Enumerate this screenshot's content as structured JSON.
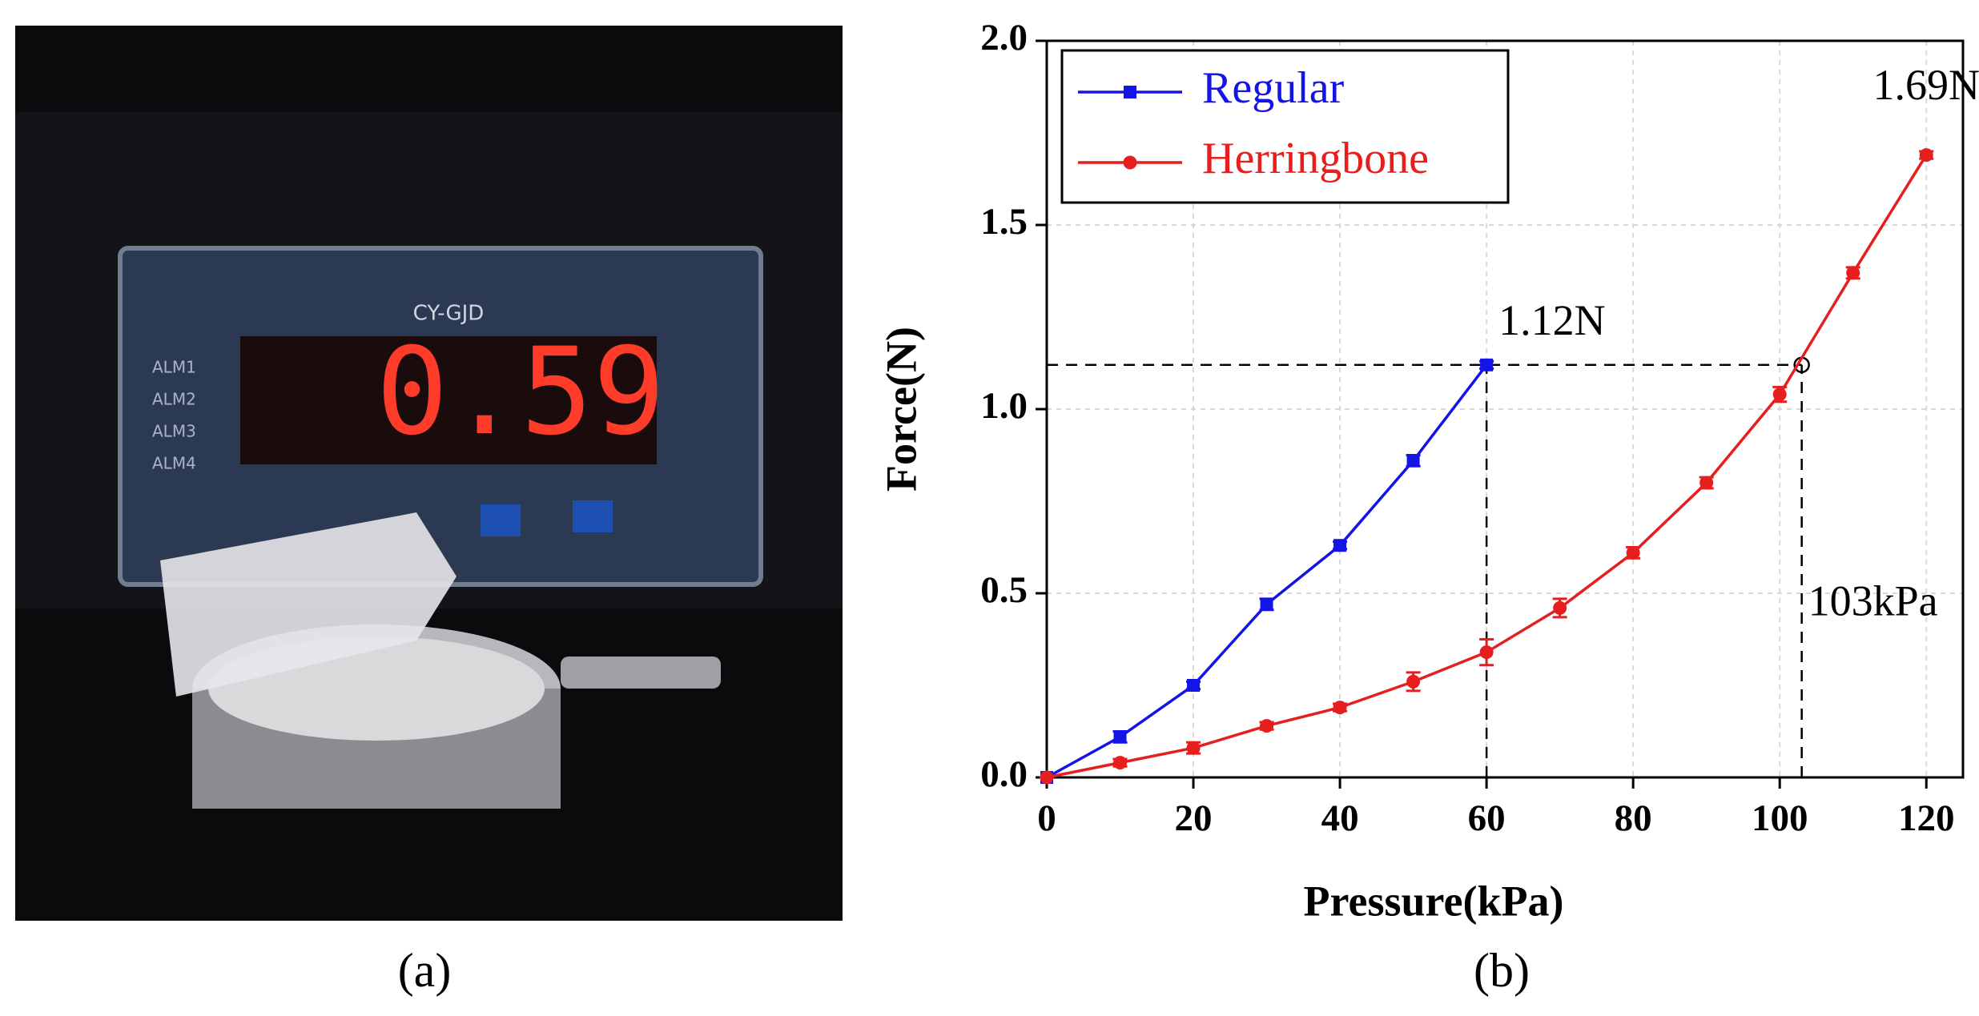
{
  "photo": {
    "display": "0.59",
    "panel_text": "CY-GJD",
    "alarms": [
      "ALM1",
      "ALM2",
      "ALM3",
      "ALM4"
    ],
    "caption": "(a)"
  },
  "chart_data": {
    "type": "line",
    "caption": "(b)",
    "x_label": "Pressure(kPa)",
    "y_label": "Force(N)",
    "xlim": [
      0,
      125
    ],
    "ylim": [
      0,
      2
    ],
    "xticks": [
      0,
      20,
      40,
      60,
      80,
      100,
      120
    ],
    "yticks": [
      {
        "value": 0,
        "label": "0.0"
      },
      {
        "value": 0.5,
        "label": "0.5"
      },
      {
        "value": 1,
        "label": "1.0"
      },
      {
        "value": 1.5,
        "label": "1.5"
      },
      {
        "value": 2,
        "label": "2.0"
      }
    ],
    "grid": true,
    "legend": "upper left",
    "series": [
      {
        "name": "Regular",
        "color": "#1414e6",
        "marker": "square",
        "x": [
          0,
          10,
          20,
          30,
          40,
          50,
          60
        ],
        "values": [
          0,
          0.11,
          0.25,
          0.47,
          0.63,
          0.86,
          1.12
        ],
        "errors": [
          0,
          0.015,
          0.01,
          0.015,
          0.01,
          0.015,
          0.01
        ]
      },
      {
        "name": "Herringbone",
        "color": "#e61e1e",
        "marker": "circle",
        "x": [
          0,
          10,
          20,
          30,
          40,
          50,
          60,
          70,
          80,
          90,
          100,
          110,
          120
        ],
        "values": [
          0,
          0.04,
          0.08,
          0.14,
          0.19,
          0.26,
          0.34,
          0.46,
          0.61,
          0.8,
          1.04,
          1.37,
          1.69
        ],
        "errors": [
          0,
          0.01,
          0.015,
          0.01,
          0.01,
          0.025,
          0.035,
          0.025,
          0.015,
          0.015,
          0.02,
          0.015,
          0.01
        ]
      }
    ],
    "annotations": [
      {
        "text": "1.12N",
        "x": 60,
        "y": 1.12,
        "guide": true
      },
      {
        "text": "103kPa",
        "x": 103,
        "y": 1.12,
        "guide": true
      },
      {
        "text": "1.69N",
        "x": 120,
        "y": 1.69,
        "guide": false
      }
    ]
  }
}
